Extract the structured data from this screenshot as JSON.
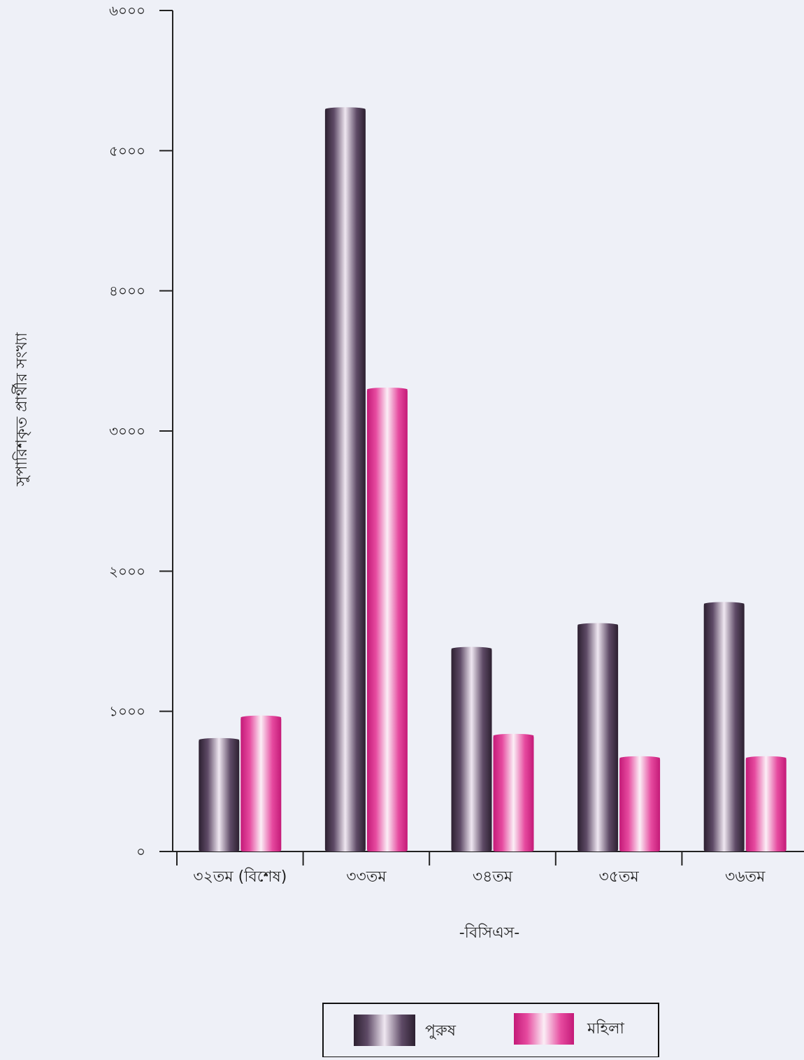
{
  "chart_data": {
    "type": "bar",
    "title": "",
    "xlabel": "-বিসিএস-",
    "ylabel": "সুপারিশকৃত প্রার্থীর সংখ্যা",
    "ylim": [
      0,
      6000
    ],
    "yticks": [
      {
        "value": 0,
        "label": "০"
      },
      {
        "value": 1000,
        "label": "১০০০"
      },
      {
        "value": 2000,
        "label": "২০০০"
      },
      {
        "value": 3000,
        "label": "৩০০০"
      },
      {
        "value": 4000,
        "label": "৪০০০"
      },
      {
        "value": 5000,
        "label": "৫০০০"
      },
      {
        "value": 6000,
        "label": "৬০০০"
      }
    ],
    "categories": [
      "৩২তম (বিশেষ)",
      "৩৩তম",
      "৩৪তম",
      "৩৫তম",
      "৩৬তম"
    ],
    "series": [
      {
        "name": "পুরুষ",
        "color": "#4a3a55",
        "values": [
          800,
          5300,
          1450,
          1620,
          1770
        ]
      },
      {
        "name": "মহিলা",
        "color": "#e0388e",
        "values": [
          960,
          3300,
          830,
          670,
          670
        ]
      }
    ],
    "grid": false,
    "legend_position": "bottom-center"
  }
}
